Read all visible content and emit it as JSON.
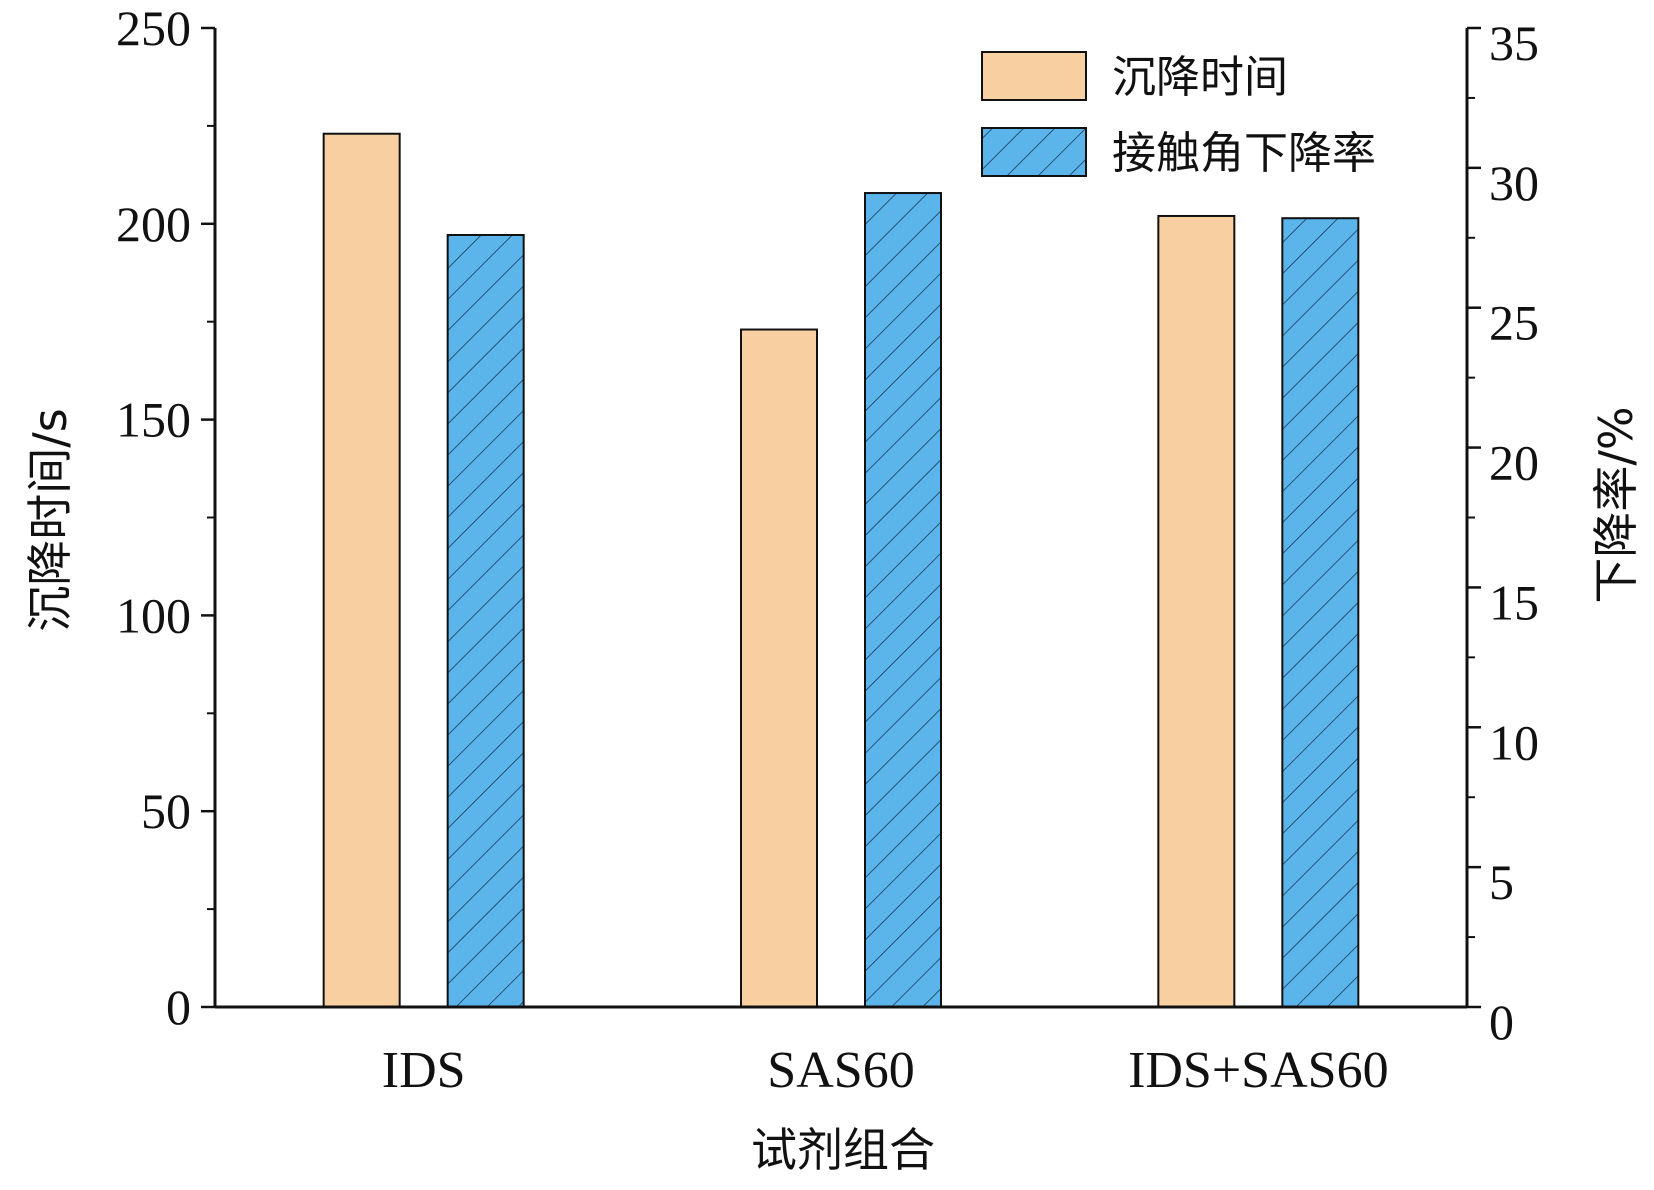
{
  "chart_data": {
    "type": "bar",
    "categories": [
      "IDS",
      "SAS60",
      "IDS+SAS60"
    ],
    "xlabel": "试剂组合",
    "ylabel_left": "沉降时间/s",
    "ylabel_right": "下降率/%",
    "ylim_left": [
      0,
      250
    ],
    "ylim_right": [
      0,
      35
    ],
    "yticks_left": [
      0,
      50,
      100,
      150,
      200,
      250
    ],
    "yticks_right": [
      0,
      5,
      10,
      15,
      20,
      25,
      30,
      35
    ],
    "legend_position": "top-right",
    "series": [
      {
        "name": "沉降时间",
        "axis": "left",
        "values": [
          223,
          173,
          202
        ],
        "color": "#F8CFA0",
        "pattern": "solid"
      },
      {
        "name": "接触角下降率",
        "axis": "right",
        "values": [
          27.6,
          29.1,
          28.2
        ],
        "color": "#5BB4EA",
        "pattern": "hatch"
      }
    ]
  }
}
